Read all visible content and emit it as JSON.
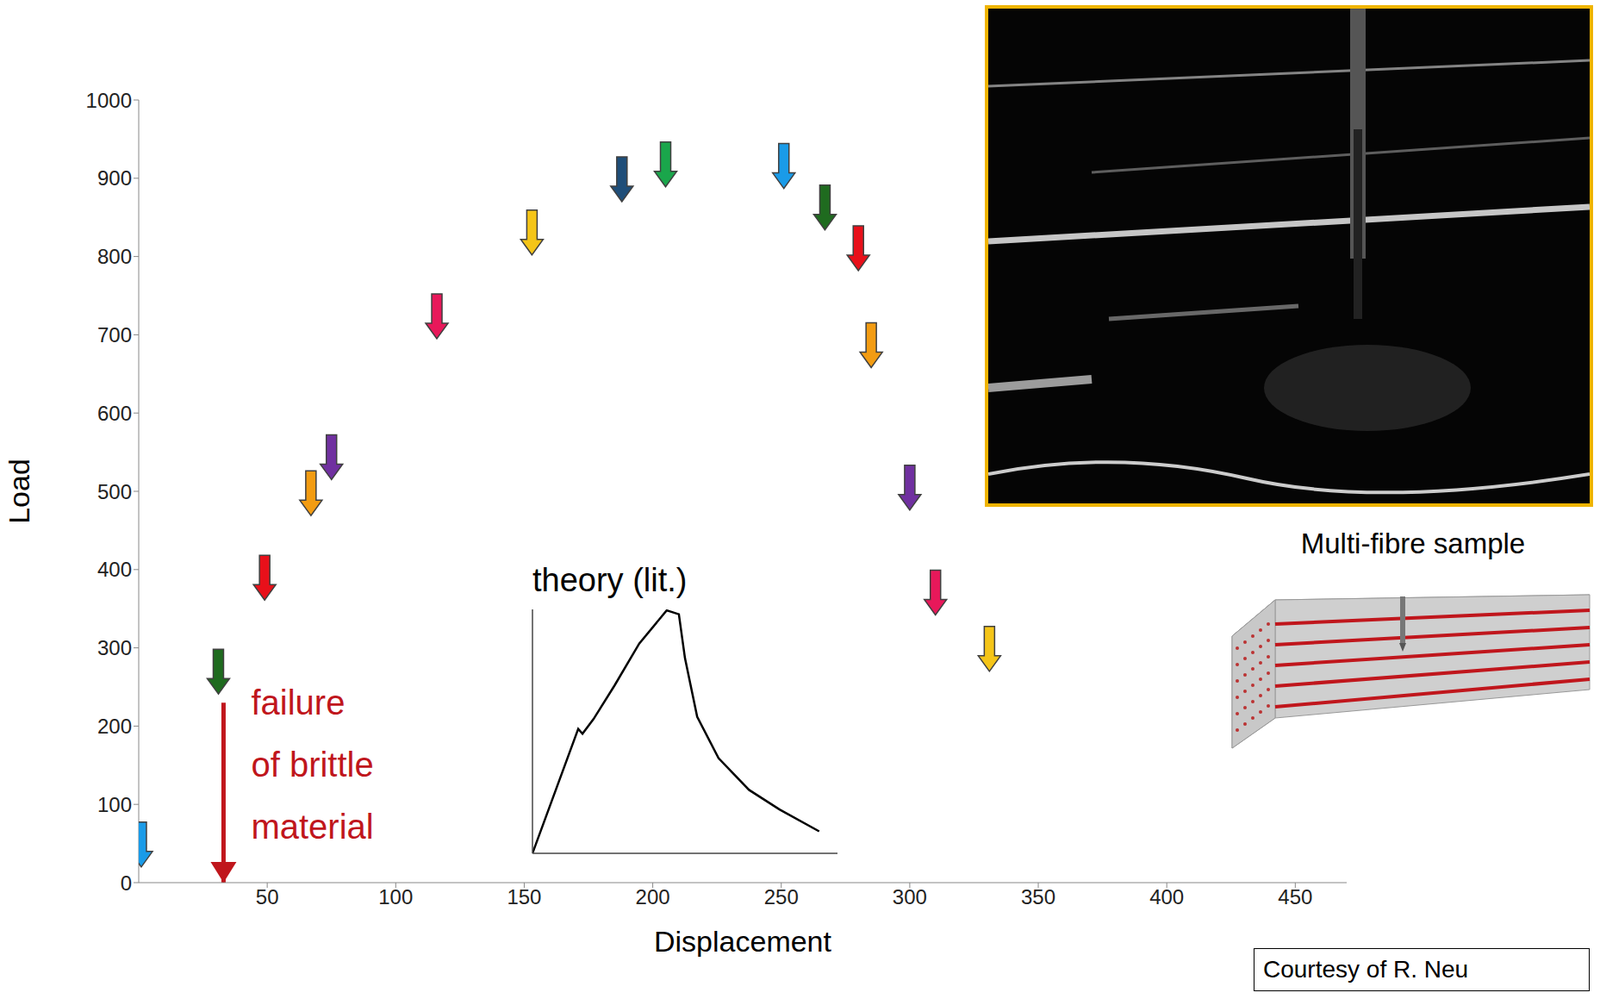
{
  "chart_data": [
    {
      "type": "scatter",
      "x_label": "Displacement",
      "y_label": "Load",
      "x": [
        1,
        31,
        49,
        67,
        75,
        116,
        153,
        188,
        205,
        251,
        267,
        280,
        285,
        300,
        310,
        331
      ],
      "values": [
        20,
        241,
        361,
        469,
        515,
        695,
        802,
        870,
        889,
        887,
        834,
        782,
        658,
        476,
        342,
        270
      ],
      "colors": [
        "#1a9be8",
        "#1f6b1f",
        "#e8101a",
        "#f39c12",
        "#7030a0",
        "#e8185a",
        "#f5c518",
        "#1f4e79",
        "#1aa64b",
        "#1a9be8",
        "#1f6b1f",
        "#e8101a",
        "#f39c12",
        "#7030a0",
        "#e8185a",
        "#f5c518"
      ],
      "marker": "arrow",
      "xlim": [
        0,
        470
      ],
      "ylim": [
        0,
        1000
      ],
      "xticks": [
        50,
        100,
        150,
        200,
        250,
        300,
        350,
        400,
        450
      ],
      "yticks": [
        0,
        100,
        200,
        300,
        400,
        500,
        600,
        700,
        800,
        900,
        1000
      ],
      "grid": false,
      "annotation": {
        "lines": [
          "failure",
          "of brittle",
          "material"
        ],
        "x": 33,
        "y_start": 230,
        "y_end": 0,
        "color": "#c0161c"
      }
    },
    {
      "type": "line",
      "title": "theory (lit.)",
      "x": [
        0,
        15,
        16.4,
        20,
        27,
        35,
        44,
        48,
        50,
        54,
        61,
        71,
        81,
        94
      ],
      "values": [
        0,
        51,
        49,
        55,
        69,
        86,
        99.6,
        98,
        80,
        56,
        39,
        26,
        18,
        9
      ],
      "xlim": [
        0,
        100
      ],
      "ylim": [
        0,
        100
      ],
      "tick_labels": false,
      "color": "#000000"
    }
  ],
  "figure": {
    "image_caption": "Multi-fibre sample",
    "credit": "Courtesy of R. Neu"
  }
}
